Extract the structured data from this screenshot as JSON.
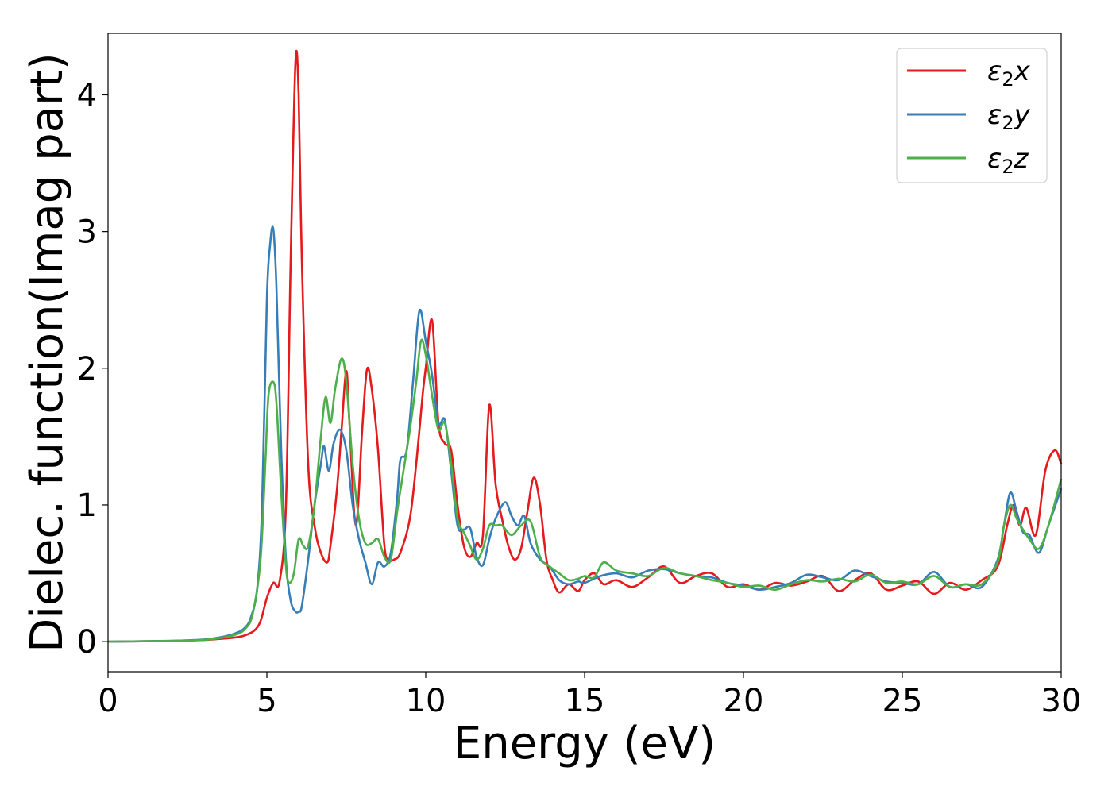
{
  "chart_data": {
    "type": "line",
    "title": "",
    "xlabel": "Energy (eV)",
    "ylabel": "Dielec. function(Imag part)",
    "xlim": [
      0,
      30
    ],
    "ylim": [
      -0.22,
      4.45
    ],
    "xticks": [
      0,
      5,
      10,
      15,
      20,
      25,
      30
    ],
    "xtick_labels": [
      "0",
      "5",
      "10",
      "15",
      "20",
      "25",
      "30"
    ],
    "yticks": [
      0,
      1,
      2,
      3,
      4
    ],
    "ytick_labels": [
      "0",
      "1",
      "2",
      "3",
      "4"
    ],
    "grid": false,
    "legend_position": "top-right",
    "series": [
      {
        "name": "ε₂x",
        "legend_base": "ε",
        "legend_sub": "2",
        "legend_var": "x",
        "color": "#e41a1c",
        "x": [
          0,
          2,
          3,
          3.5,
          4,
          4.3,
          4.6,
          4.8,
          5.0,
          5.2,
          5.4,
          5.6,
          5.75,
          5.9,
          6.0,
          6.1,
          6.3,
          6.5,
          6.7,
          6.9,
          7.0,
          7.2,
          7.35,
          7.5,
          7.6,
          7.8,
          8.0,
          8.15,
          8.3,
          8.5,
          8.7,
          8.85,
          9.0,
          9.2,
          9.5,
          9.7,
          9.9,
          10.0,
          10.2,
          10.4,
          10.6,
          10.8,
          11.0,
          11.2,
          11.4,
          11.6,
          11.8,
          12.0,
          12.2,
          12.4,
          12.6,
          12.8,
          13.0,
          13.2,
          13.4,
          13.6,
          13.8,
          14.0,
          14.2,
          14.5,
          14.8,
          15.0,
          15.3,
          15.6,
          16.0,
          16.5,
          17.0,
          17.5,
          18.0,
          18.5,
          19.0,
          19.5,
          20.0,
          20.5,
          21.0,
          21.5,
          22.0,
          22.5,
          23.0,
          23.5,
          24.0,
          24.5,
          25.0,
          25.5,
          26.0,
          26.5,
          27.0,
          27.5,
          28.0,
          28.3,
          28.5,
          28.7,
          28.9,
          29.2,
          29.5,
          29.8,
          30.0
        ],
        "y": [
          0,
          0.005,
          0.012,
          0.02,
          0.03,
          0.045,
          0.08,
          0.15,
          0.32,
          0.43,
          0.44,
          1.0,
          2.8,
          4.24,
          4.0,
          2.8,
          1.3,
          0.85,
          0.65,
          0.58,
          0.7,
          1.1,
          1.55,
          1.98,
          1.6,
          0.85,
          1.55,
          1.99,
          1.85,
          1.4,
          0.7,
          0.6,
          0.6,
          0.65,
          0.9,
          1.3,
          1.8,
          2.0,
          2.35,
          1.6,
          1.45,
          1.4,
          1.0,
          0.7,
          0.62,
          0.72,
          0.78,
          1.73,
          1.15,
          0.9,
          0.7,
          0.6,
          0.68,
          0.95,
          1.2,
          1.0,
          0.6,
          0.45,
          0.36,
          0.42,
          0.37,
          0.45,
          0.5,
          0.42,
          0.45,
          0.4,
          0.47,
          0.55,
          0.43,
          0.48,
          0.5,
          0.4,
          0.42,
          0.38,
          0.43,
          0.41,
          0.44,
          0.48,
          0.37,
          0.45,
          0.5,
          0.38,
          0.41,
          0.44,
          0.35,
          0.43,
          0.38,
          0.45,
          0.55,
          0.85,
          1.0,
          0.85,
          0.98,
          0.78,
          1.25,
          1.4,
          1.3
        ]
      },
      {
        "name": "ε₂y",
        "legend_base": "ε",
        "legend_sub": "2",
        "legend_var": "y",
        "color": "#377eb8",
        "x": [
          0,
          2,
          3,
          3.5,
          4,
          4.3,
          4.5,
          4.7,
          4.85,
          5.0,
          5.1,
          5.2,
          5.3,
          5.45,
          5.6,
          5.75,
          5.9,
          6.0,
          6.1,
          6.3,
          6.5,
          6.7,
          6.8,
          6.95,
          7.1,
          7.3,
          7.5,
          7.7,
          7.9,
          8.1,
          8.3,
          8.5,
          8.7,
          8.9,
          9.1,
          9.2,
          9.4,
          9.6,
          9.8,
          10.0,
          10.2,
          10.4,
          10.6,
          10.8,
          11.0,
          11.2,
          11.4,
          11.6,
          11.8,
          12.0,
          12.2,
          12.5,
          12.7,
          12.9,
          13.1,
          13.3,
          13.6,
          13.9,
          14.2,
          14.5,
          14.8,
          15.0,
          15.5,
          16.0,
          16.5,
          17.0,
          17.5,
          18.0,
          18.5,
          19.0,
          19.5,
          20.0,
          20.5,
          21.0,
          21.5,
          22.0,
          22.5,
          23.0,
          23.5,
          24.0,
          24.5,
          25.0,
          25.5,
          26.0,
          26.5,
          27.0,
          27.5,
          28.0,
          28.2,
          28.4,
          28.6,
          28.8,
          29.0,
          29.3,
          29.6,
          30.0
        ],
        "y": [
          0,
          0.006,
          0.015,
          0.03,
          0.06,
          0.1,
          0.18,
          0.4,
          1.0,
          2.5,
          2.9,
          3.02,
          2.6,
          1.4,
          0.6,
          0.3,
          0.22,
          0.22,
          0.26,
          0.6,
          1.0,
          1.3,
          1.43,
          1.25,
          1.45,
          1.55,
          1.4,
          1.0,
          0.75,
          0.58,
          0.42,
          0.58,
          0.55,
          0.65,
          1.05,
          1.33,
          1.4,
          1.9,
          2.42,
          2.2,
          1.95,
          1.6,
          1.62,
          1.25,
          0.85,
          0.82,
          0.83,
          0.62,
          0.56,
          0.75,
          0.9,
          1.02,
          0.92,
          0.85,
          0.92,
          0.72,
          0.6,
          0.55,
          0.45,
          0.42,
          0.44,
          0.43,
          0.48,
          0.5,
          0.47,
          0.52,
          0.53,
          0.5,
          0.48,
          0.47,
          0.43,
          0.41,
          0.38,
          0.4,
          0.43,
          0.49,
          0.47,
          0.45,
          0.52,
          0.48,
          0.44,
          0.43,
          0.42,
          0.51,
          0.4,
          0.42,
          0.4,
          0.6,
          0.85,
          1.09,
          0.95,
          0.8,
          0.78,
          0.65,
          0.85,
          1.12
        ]
      },
      {
        "name": "ε₂z",
        "legend_base": "ε",
        "legend_sub": "2",
        "legend_var": "z",
        "color": "#4daf4a",
        "x": [
          0,
          2,
          3,
          3.5,
          4,
          4.3,
          4.55,
          4.8,
          4.95,
          5.05,
          5.2,
          5.3,
          5.45,
          5.6,
          5.7,
          5.85,
          6.0,
          6.15,
          6.3,
          6.5,
          6.7,
          6.85,
          7.0,
          7.15,
          7.35,
          7.5,
          7.7,
          7.9,
          8.1,
          8.3,
          8.5,
          8.7,
          8.9,
          9.1,
          9.3,
          9.5,
          9.7,
          9.85,
          10.0,
          10.2,
          10.4,
          10.6,
          10.8,
          11.0,
          11.2,
          11.4,
          11.6,
          11.8,
          12.0,
          12.2,
          12.4,
          12.7,
          13.0,
          13.3,
          13.6,
          13.9,
          14.2,
          14.5,
          14.8,
          15.0,
          15.3,
          15.6,
          16.0,
          16.5,
          17.0,
          17.5,
          18.0,
          18.5,
          19.0,
          19.5,
          20.0,
          20.5,
          21.0,
          21.5,
          22.0,
          22.5,
          23.0,
          23.5,
          24.0,
          24.5,
          25.0,
          25.5,
          26.0,
          26.5,
          27.0,
          27.5,
          28.0,
          28.2,
          28.4,
          28.6,
          28.8,
          29.0,
          29.3,
          29.6,
          30.0
        ],
        "y": [
          0,
          0.005,
          0.013,
          0.025,
          0.05,
          0.09,
          0.2,
          0.6,
          1.3,
          1.8,
          1.9,
          1.75,
          1.1,
          0.55,
          0.43,
          0.5,
          0.75,
          0.7,
          0.7,
          1.0,
          1.5,
          1.79,
          1.6,
          1.85,
          2.07,
          1.9,
          1.3,
          0.9,
          0.72,
          0.72,
          0.75,
          0.62,
          0.6,
          0.95,
          1.25,
          1.55,
          1.9,
          2.2,
          2.1,
          1.8,
          1.55,
          1.6,
          1.3,
          0.9,
          0.8,
          0.7,
          0.6,
          0.68,
          0.85,
          0.85,
          0.85,
          0.78,
          0.85,
          0.88,
          0.62,
          0.55,
          0.5,
          0.45,
          0.46,
          0.48,
          0.47,
          0.58,
          0.52,
          0.5,
          0.48,
          0.54,
          0.5,
          0.48,
          0.45,
          0.43,
          0.4,
          0.41,
          0.38,
          0.42,
          0.45,
          0.44,
          0.46,
          0.44,
          0.49,
          0.43,
          0.44,
          0.42,
          0.48,
          0.4,
          0.42,
          0.42,
          0.58,
          0.85,
          1.0,
          0.9,
          0.82,
          0.75,
          0.68,
          0.85,
          1.19
        ]
      }
    ]
  }
}
